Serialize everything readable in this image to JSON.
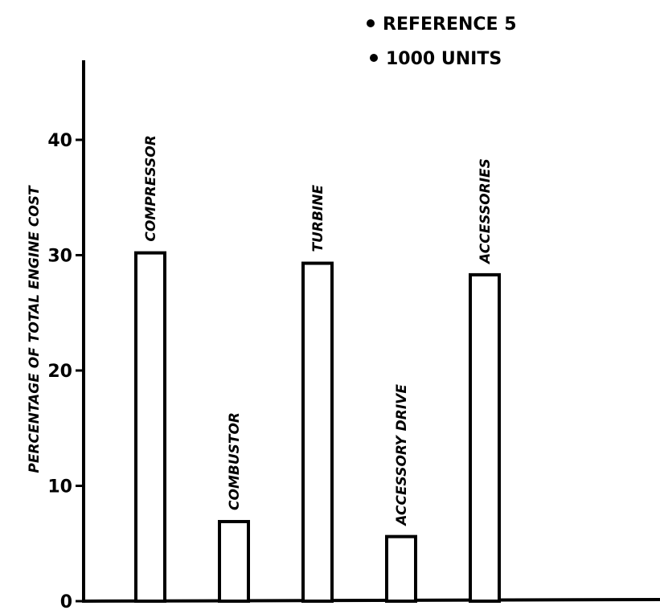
{
  "legend": {
    "items": [
      "REFERENCE 5",
      "1000 UNITS"
    ]
  },
  "chart_data": {
    "type": "bar",
    "categories": [
      "COMPRESSOR",
      "COMBUSTOR",
      "TURBINE",
      "ACCESSORY DRIVE",
      "ACCESSORIES"
    ],
    "values": [
      30.2,
      6.9,
      29.3,
      5.6,
      28.3
    ],
    "ylabel": "PERCENTAGE OF TOTAL ENGINE COST",
    "xlabel": "",
    "ylim": [
      0,
      45
    ],
    "yticks": [
      0,
      10,
      20,
      30,
      40
    ],
    "grid": false,
    "legend_position": "top-center"
  }
}
